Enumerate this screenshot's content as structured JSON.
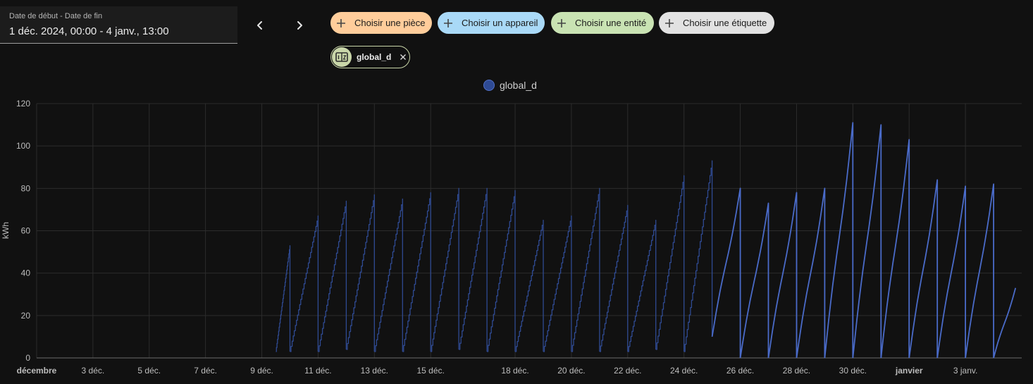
{
  "date_range": {
    "label": "Date de début - Date de fin",
    "value": "1 déc. 2024, 00:00 - 4 janv., 13:00"
  },
  "nav": {
    "prev_icon": "chevron-left-icon",
    "next_icon": "chevron-right-icon"
  },
  "filters": [
    {
      "label": "Choisir une pièce",
      "color": "#ffcd9b"
    },
    {
      "label": "Choisir un appareil",
      "color": "#a9d9f7"
    },
    {
      "label": "Choisir une entité",
      "color": "#c9e3b3"
    },
    {
      "label": "Choisir une étiquette",
      "color": "#e2e2e2"
    }
  ],
  "selected_entity": {
    "label": "global_d",
    "icon": "counter-icon",
    "color": "#c9d6a9"
  },
  "chart_data": {
    "type": "line",
    "ylabel": "kWh",
    "ylim": [
      0,
      120
    ],
    "yticks": [
      0,
      20,
      40,
      60,
      80,
      100,
      120
    ],
    "xlim": [
      1,
      36
    ],
    "x_ticks": [
      {
        "x": 1,
        "label": "décembre",
        "bold": true
      },
      {
        "x": 3,
        "label": "3 déc."
      },
      {
        "x": 5,
        "label": "5 déc."
      },
      {
        "x": 7,
        "label": "7 déc."
      },
      {
        "x": 9,
        "label": "9 déc."
      },
      {
        "x": 11,
        "label": "11 déc."
      },
      {
        "x": 13,
        "label": "13 déc."
      },
      {
        "x": 15,
        "label": "15 déc."
      },
      {
        "x": 18,
        "label": "18 déc."
      },
      {
        "x": 20,
        "label": "20 déc."
      },
      {
        "x": 22,
        "label": "22 déc."
      },
      {
        "x": 24,
        "label": "24 déc."
      },
      {
        "x": 26,
        "label": "26 déc."
      },
      {
        "x": 28,
        "label": "28 déc."
      },
      {
        "x": 30,
        "label": "30 déc."
      },
      {
        "x": 32,
        "label": "janvier",
        "bold": true
      },
      {
        "x": 34,
        "label": "3 janv."
      }
    ],
    "grid": true,
    "legend_position": "top-center",
    "series": [
      {
        "name": "global_d",
        "color": "#4a6bc9",
        "style_before_x": 25,
        "step_color": "#2f4a92",
        "cycles": [
          {
            "start": 9.5,
            "end": 10.0,
            "base": 3,
            "peak": 53
          },
          {
            "start": 10.0,
            "end": 11.0,
            "base": 3,
            "peak": 67
          },
          {
            "start": 11.0,
            "end": 12.0,
            "base": 3,
            "peak": 74
          },
          {
            "start": 12.0,
            "end": 13.0,
            "base": 4,
            "peak": 77
          },
          {
            "start": 13.0,
            "end": 14.0,
            "base": 3,
            "peak": 75
          },
          {
            "start": 14.0,
            "end": 15.0,
            "base": 3,
            "peak": 78
          },
          {
            "start": 15.0,
            "end": 16.0,
            "base": 3,
            "peak": 80
          },
          {
            "start": 16.0,
            "end": 17.0,
            "base": 4,
            "peak": 80
          },
          {
            "start": 17.0,
            "end": 18.0,
            "base": 3,
            "peak": 79
          },
          {
            "start": 18.0,
            "end": 19.0,
            "base": 3,
            "peak": 65
          },
          {
            "start": 19.0,
            "end": 20.0,
            "base": 3,
            "peak": 67
          },
          {
            "start": 20.0,
            "end": 21.0,
            "base": 3,
            "peak": 80
          },
          {
            "start": 21.0,
            "end": 22.0,
            "base": 3,
            "peak": 72
          },
          {
            "start": 22.0,
            "end": 23.0,
            "base": 3,
            "peak": 65
          },
          {
            "start": 23.0,
            "end": 24.0,
            "base": 4,
            "peak": 86
          },
          {
            "start": 24.0,
            "end": 25.0,
            "base": 3,
            "peak": 93
          },
          {
            "start": 25.0,
            "end": 26.0,
            "base": 10,
            "peak": 80
          },
          {
            "start": 26.0,
            "end": 27.0,
            "base": 0,
            "peak": 73
          },
          {
            "start": 27.0,
            "end": 28.0,
            "base": 0,
            "peak": 78
          },
          {
            "start": 28.0,
            "end": 29.0,
            "base": 0,
            "peak": 80
          },
          {
            "start": 29.0,
            "end": 30.0,
            "base": 0,
            "peak": 111
          },
          {
            "start": 30.0,
            "end": 31.0,
            "base": 0,
            "peak": 110
          },
          {
            "start": 31.0,
            "end": 32.0,
            "base": 0,
            "peak": 103
          },
          {
            "start": 32.0,
            "end": 33.0,
            "base": 0,
            "peak": 84
          },
          {
            "start": 33.0,
            "end": 34.0,
            "base": 0,
            "peak": 81
          },
          {
            "start": 34.0,
            "end": 35.0,
            "base": 0,
            "peak": 82
          },
          {
            "start": 35.0,
            "end": 35.78,
            "base": 0,
            "peak": 33
          }
        ]
      }
    ]
  }
}
